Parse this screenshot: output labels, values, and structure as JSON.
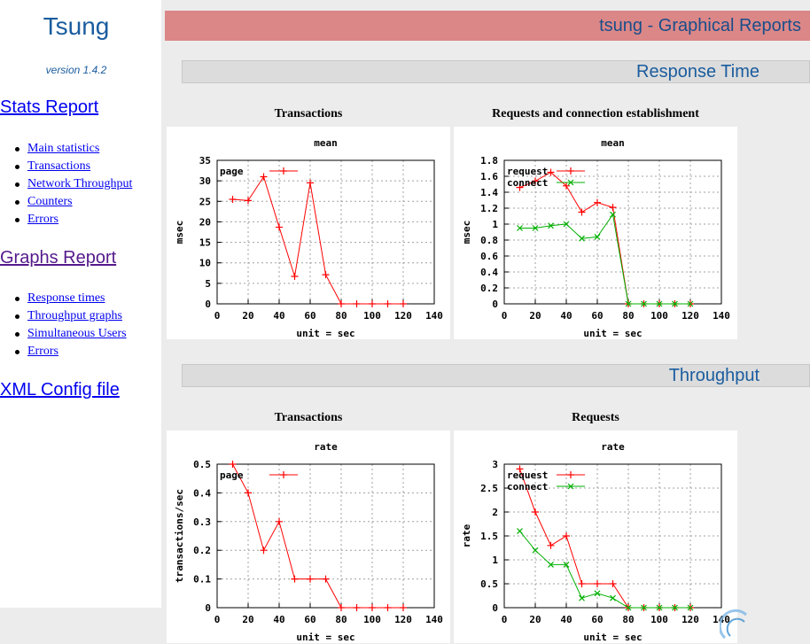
{
  "sidebar": {
    "logo": "Tsung",
    "version": "version 1.4.2",
    "stats_title": "Stats Report",
    "stats_items": [
      "Main statistics",
      "Transactions",
      "Network Throughput",
      "Counters",
      "Errors"
    ],
    "graphs_title": "Graphs Report",
    "graphs_items": [
      "Response times",
      "Throughput graphs",
      "Simultaneous Users",
      "Errors"
    ],
    "xml_config": "XML Config file"
  },
  "banner": {
    "title": "tsung - Graphical Reports"
  },
  "sections": {
    "response_time": "Response Time",
    "throughput": "Throughput"
  },
  "colors": {
    "banner_bg": "#dc8787",
    "link": "#0000ee",
    "visited": "#551a8b",
    "series_red": "#ff0000",
    "series_green": "#00b000"
  },
  "chart_data": [
    {
      "type": "line",
      "caption": "Transactions",
      "title": "mean",
      "xlabel": "unit = sec",
      "ylabel": "msec",
      "xlim": [
        0,
        140
      ],
      "ylim": [
        0,
        35
      ],
      "xticks": [
        0,
        20,
        40,
        60,
        80,
        100,
        120,
        140
      ],
      "yticks": [
        0,
        5,
        10,
        15,
        20,
        25,
        30,
        35
      ],
      "ytick_labels": [
        "0",
        "5",
        "10",
        "15",
        "20",
        "25",
        "30",
        "35"
      ],
      "grid": true,
      "legend_position": "top-left",
      "series": [
        {
          "name": "page",
          "marker": "+",
          "x": [
            10,
            20,
            30,
            40,
            50,
            60,
            70,
            80,
            90,
            100,
            110,
            120
          ],
          "values": [
            25.5,
            25.2,
            31,
            18.7,
            6.7,
            29.5,
            7.1,
            0,
            0,
            0,
            0,
            0
          ]
        }
      ]
    },
    {
      "type": "line",
      "caption": "Requests and connection establishment",
      "title": "mean",
      "xlabel": "unit = sec",
      "ylabel": "msec",
      "xlim": [
        0,
        140
      ],
      "ylim": [
        0,
        1.8
      ],
      "xticks": [
        0,
        20,
        40,
        60,
        80,
        100,
        120,
        140
      ],
      "yticks": [
        0,
        0.2,
        0.4,
        0.6,
        0.8,
        1,
        1.2,
        1.4,
        1.6,
        1.8
      ],
      "ytick_labels": [
        "0",
        "0.2",
        "0.4",
        "0.6",
        "0.8",
        "1",
        "1.2",
        "1.4",
        "1.6",
        "1.8"
      ],
      "grid": true,
      "legend_position": "top-left",
      "series": [
        {
          "name": "request",
          "marker": "+",
          "x": [
            10,
            20,
            30,
            40,
            50,
            60,
            70,
            80,
            90,
            100,
            110,
            120
          ],
          "values": [
            1.46,
            1.54,
            1.65,
            1.48,
            1.15,
            1.27,
            1.21,
            0,
            0,
            0,
            0,
            0
          ]
        },
        {
          "name": "connect",
          "marker": "x",
          "x": [
            10,
            20,
            30,
            40,
            50,
            60,
            70,
            80,
            90,
            100,
            110,
            120
          ],
          "values": [
            0.95,
            0.95,
            0.98,
            1.0,
            0.82,
            0.84,
            1.12,
            0,
            0,
            0,
            0,
            0
          ]
        }
      ]
    },
    {
      "type": "line",
      "caption": "Transactions",
      "title": "rate",
      "xlabel": "unit = sec",
      "ylabel": "transactions/sec",
      "xlim": [
        0,
        140
      ],
      "ylim": [
        0,
        0.5
      ],
      "xticks": [
        0,
        20,
        40,
        60,
        80,
        100,
        120,
        140
      ],
      "yticks": [
        0,
        0.1,
        0.2,
        0.3,
        0.4,
        0.5
      ],
      "ytick_labels": [
        "0",
        "0.1",
        "0.2",
        "0.3",
        "0.4",
        "0.5"
      ],
      "grid": true,
      "legend_position": "top-left",
      "series": [
        {
          "name": "page",
          "marker": "+",
          "x": [
            10,
            20,
            30,
            40,
            50,
            60,
            70,
            80,
            90,
            100,
            110,
            120
          ],
          "values": [
            0.5,
            0.4,
            0.2,
            0.3,
            0.1,
            0.1,
            0.1,
            0,
            0,
            0,
            0,
            0
          ]
        }
      ]
    },
    {
      "type": "line",
      "caption": "Requests",
      "title": "rate",
      "xlabel": "unit = sec",
      "ylabel": "rate",
      "xlim": [
        0,
        140
      ],
      "ylim": [
        0,
        3
      ],
      "xticks": [
        0,
        20,
        40,
        60,
        80,
        100,
        120,
        140
      ],
      "yticks": [
        0,
        0.5,
        1,
        1.5,
        2,
        2.5,
        3
      ],
      "ytick_labels": [
        "0",
        "0.5",
        "1",
        "1.5",
        "2",
        "2.5",
        "3"
      ],
      "grid": true,
      "legend_position": "top-left",
      "series": [
        {
          "name": "request",
          "marker": "+",
          "x": [
            10,
            20,
            30,
            40,
            50,
            60,
            70,
            80,
            90,
            100,
            110,
            120
          ],
          "values": [
            2.9,
            2.0,
            1.3,
            1.5,
            0.5,
            0.5,
            0.5,
            0,
            0,
            0,
            0,
            0
          ]
        },
        {
          "name": "connect",
          "marker": "x",
          "x": [
            10,
            20,
            30,
            40,
            50,
            60,
            70,
            80,
            90,
            100,
            110,
            120
          ],
          "values": [
            1.6,
            1.2,
            0.9,
            0.9,
            0.2,
            0.3,
            0.2,
            0,
            0,
            0,
            0,
            0
          ]
        }
      ]
    }
  ]
}
